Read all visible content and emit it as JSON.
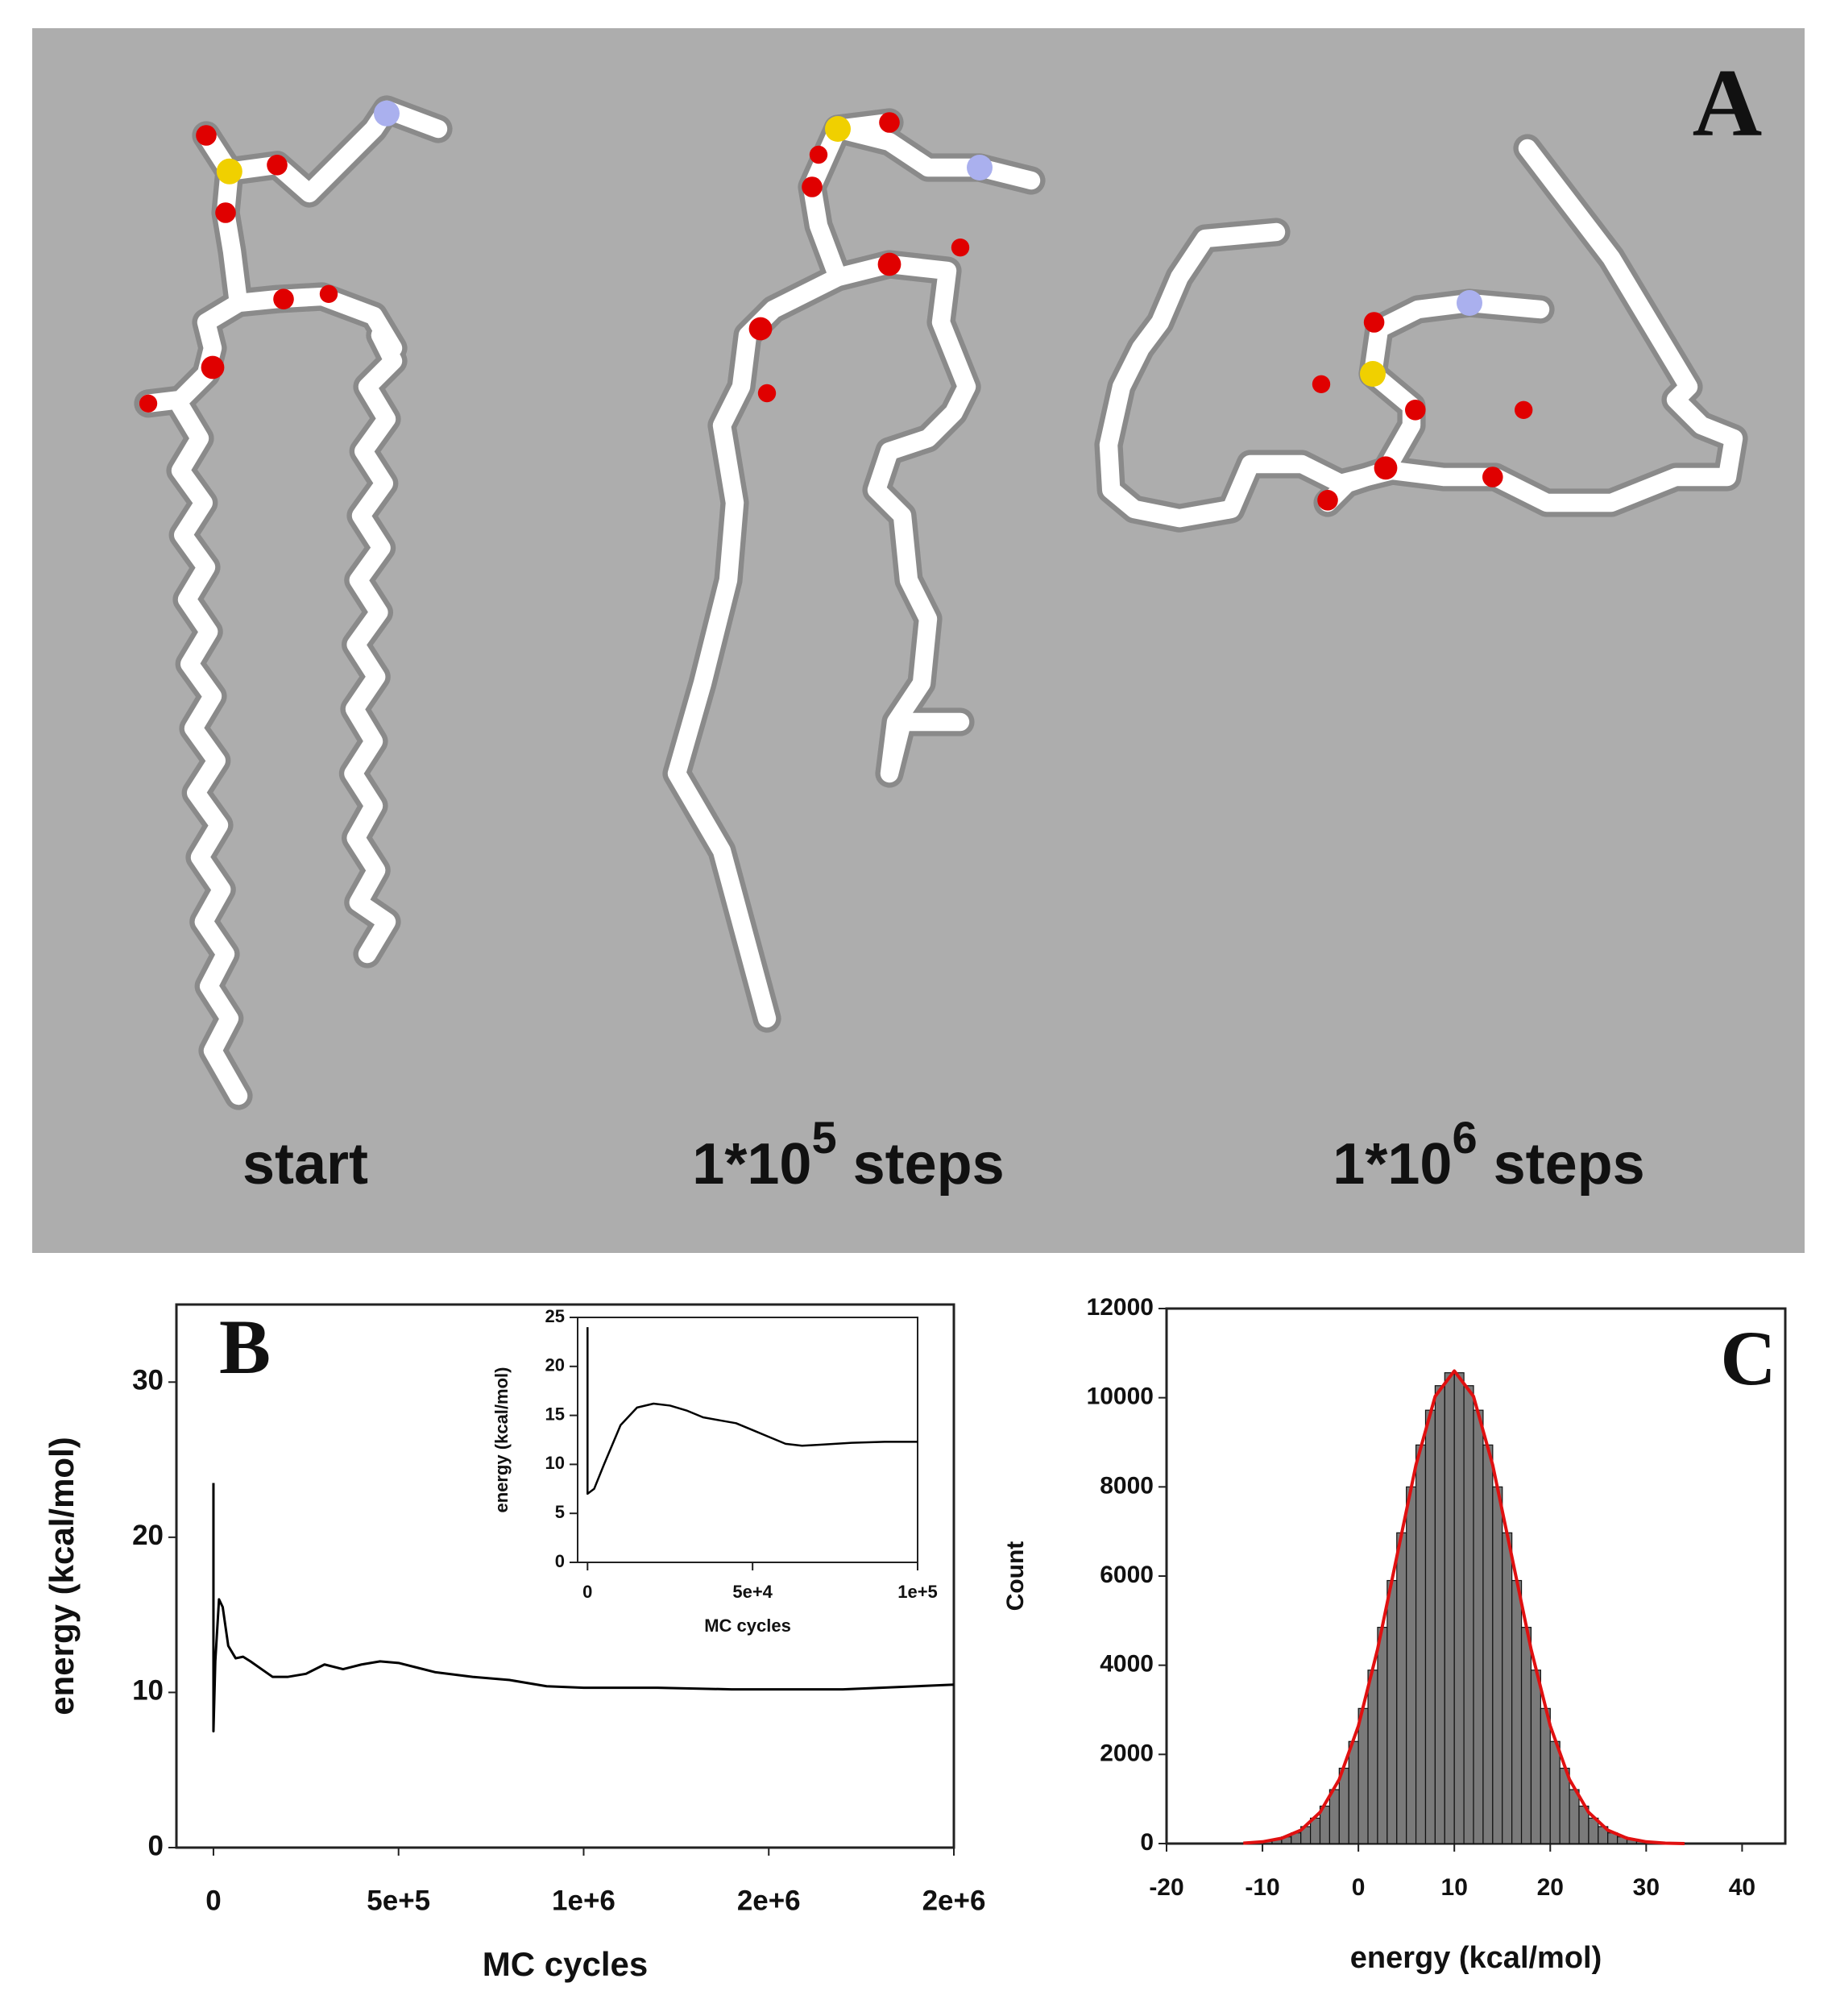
{
  "panel_a": {
    "label": "A",
    "captions": [
      "start",
      {
        "base": "1*10",
        "sup": "5",
        "rest": "steps"
      },
      {
        "base": "1*10",
        "sup": "6",
        "rest": "steps"
      }
    ]
  },
  "chart_data": [
    {
      "type": "line",
      "label": "B",
      "xlabel": "MC cycles",
      "ylabel": "energy (kcal/mol)",
      "xlim": [
        -100000,
        2000000
      ],
      "ylim": [
        0,
        35
      ],
      "xticks": [
        0,
        {
          "value": 500000,
          "label": "5e+5"
        },
        {
          "value": 1000000,
          "label": "1e+6"
        },
        {
          "value": 1500000,
          "label": "2e+6"
        },
        {
          "value": 2000000,
          "label": "2e+6"
        }
      ],
      "yticks": [
        0,
        10,
        20,
        30
      ],
      "series": [
        {
          "color": "#000000",
          "x": [
            0,
            0,
            5000,
            15000,
            25000,
            40000,
            60000,
            80000,
            100000,
            130000,
            160000,
            200000,
            250000,
            300000,
            350000,
            400000,
            450000,
            500000,
            550000,
            600000,
            700000,
            800000,
            900000,
            1000000,
            1200000,
            1400000,
            1500000,
            1700000,
            1900000,
            2000000
          ],
          "values": [
            23.5,
            7.5,
            12,
            16,
            15.5,
            13,
            12.2,
            12.3,
            12,
            11.5,
            11,
            11,
            11.2,
            11.8,
            11.5,
            11.8,
            12,
            11.9,
            11.6,
            11.3,
            11,
            10.8,
            10.4,
            10.3,
            10.3,
            10.2,
            10.2,
            10.2,
            10.4,
            10.5
          ]
        }
      ]
    },
    {
      "type": "line",
      "xlabel": "MC cycles",
      "ylabel": "energy (kcal/mol)",
      "xlim": [
        -3000,
        100000
      ],
      "ylim": [
        0,
        25
      ],
      "xticks": [
        0,
        {
          "value": 50000,
          "label": "5e+4"
        },
        {
          "value": 100000,
          "label": "1e+5"
        }
      ],
      "yticks": [
        0,
        5,
        10,
        15,
        20,
        25
      ],
      "series": [
        {
          "color": "#000000",
          "x": [
            0,
            0,
            2000,
            5000,
            10000,
            15000,
            20000,
            25000,
            30000,
            35000,
            40000,
            45000,
            50000,
            55000,
            60000,
            65000,
            70000,
            80000,
            90000,
            100000
          ],
          "values": [
            24,
            7,
            7.5,
            10,
            14,
            15.8,
            16.2,
            16,
            15.5,
            14.8,
            14.5,
            14.2,
            13.5,
            12.8,
            12.1,
            11.9,
            12,
            12.2,
            12.3,
            12.3
          ]
        }
      ]
    },
    {
      "type": "histogram",
      "label": "C",
      "xlabel": "energy (kcal/mol)",
      "ylabel": "Count",
      "xlim": [
        -20,
        44.5
      ],
      "ylim": [
        0,
        12000
      ],
      "xticks": [
        -20,
        -10,
        0,
        10,
        20,
        30,
        40
      ],
      "yticks": [
        0,
        2000,
        4000,
        6000,
        8000,
        10000,
        12000
      ],
      "color": "#7a7a7a",
      "bins": [
        -10,
        -9,
        -8,
        -7,
        -6,
        -5,
        -4,
        -3,
        -2,
        -1,
        0,
        1,
        2,
        3,
        4,
        5,
        6,
        7,
        8,
        9,
        10,
        11,
        12,
        13,
        14,
        15,
        16,
        17,
        18,
        19,
        20,
        21,
        22,
        23,
        24,
        25,
        26,
        27,
        28,
        29,
        30
      ],
      "values": [
        50,
        90,
        150,
        240,
        380,
        570,
        840,
        1210,
        1690,
        2290,
        3030,
        3890,
        4850,
        5900,
        6970,
        8000,
        8940,
        9720,
        10270,
        10560,
        10560,
        10270,
        9720,
        8940,
        8000,
        6970,
        5900,
        4850,
        3890,
        3030,
        2290,
        1690,
        1210,
        840,
        570,
        380,
        240,
        150,
        90,
        50
      ],
      "fit": {
        "color": "#e01010",
        "x": [
          -12,
          -10,
          -8,
          -6,
          -4,
          -2,
          0,
          2,
          4,
          6,
          8,
          10,
          12,
          14,
          16,
          18,
          20,
          22,
          24,
          26,
          28,
          30,
          32,
          34
        ],
        "values": [
          10,
          40,
          120,
          300,
          700,
          1440,
          2640,
          4360,
          6430,
          8490,
          10030,
          10600,
          10030,
          8490,
          6430,
          4360,
          2640,
          1440,
          700,
          300,
          120,
          40,
          10,
          0
        ]
      }
    }
  ]
}
